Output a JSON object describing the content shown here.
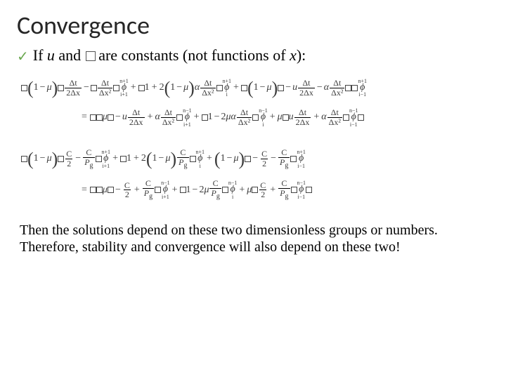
{
  "title": "Convergence",
  "bullet": {
    "lead": "If ",
    "var1": "u",
    "mid": " and ",
    "var2": "�",
    "tail": " are constants (not functions of ",
    "xvar": "x",
    "close": "):"
  },
  "conclusion": "Then the solutions depend on these two dimensionless groups or numbers. Therefore, stability and convergence will also depend on these two!",
  "eq": {
    "mu": "μ",
    "alpha": "α",
    "u": "u",
    "phi": "ϕ",
    "dt": "Δt",
    "dx": "Δx",
    "dx2": "Δx²",
    "two": "2",
    "one": "1",
    "C": "C",
    "Pg": "P",
    "g": "g",
    "np1": "n+1",
    "nm1": "n−1",
    "ip1": "i+1",
    "im1": "i−1",
    "i": "i"
  },
  "style": {
    "title_color": "#262626",
    "text_color": "#000000",
    "check_color": "#6aa84f",
    "bg": "#ffffff",
    "title_fontsize": 36,
    "bullet_fontsize": 22,
    "eq_fontsize": 14,
    "conclusion_fontsize": 20
  }
}
